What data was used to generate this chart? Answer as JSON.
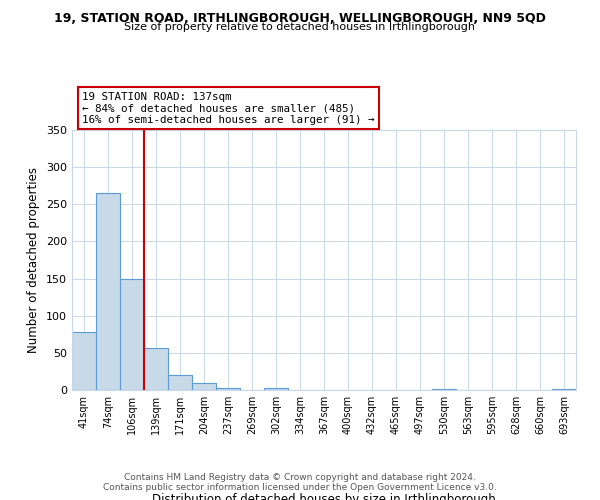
{
  "title_line1": "19, STATION ROAD, IRTHLINGBOROUGH, WELLINGBOROUGH, NN9 5QD",
  "title_line2": "Size of property relative to detached houses in Irthlingborough",
  "xlabel": "Distribution of detached houses by size in Irthlingborough",
  "ylabel": "Number of detached properties",
  "bar_labels": [
    "41sqm",
    "74sqm",
    "106sqm",
    "139sqm",
    "171sqm",
    "204sqm",
    "237sqm",
    "269sqm",
    "302sqm",
    "334sqm",
    "367sqm",
    "400sqm",
    "432sqm",
    "465sqm",
    "497sqm",
    "530sqm",
    "563sqm",
    "595sqm",
    "628sqm",
    "660sqm",
    "693sqm"
  ],
  "bar_values": [
    78,
    265,
    149,
    57,
    20,
    10,
    3,
    0,
    3,
    0,
    0,
    0,
    0,
    0,
    0,
    2,
    0,
    0,
    0,
    0,
    2
  ],
  "bar_color": "#c8d9e8",
  "bar_edge_color": "#5b9bd5",
  "vline_index": 3,
  "vline_color": "#cc0000",
  "annotation_title": "19 STATION ROAD: 137sqm",
  "annotation_line2": "← 84% of detached houses are smaller (485)",
  "annotation_line3": "16% of semi-detached houses are larger (91) →",
  "annotation_box_color": "#cc0000",
  "annotation_fill": "#ffffff",
  "ylim": [
    0,
    350
  ],
  "yticks": [
    0,
    50,
    100,
    150,
    200,
    250,
    300,
    350
  ],
  "footer_line1": "Contains HM Land Registry data © Crown copyright and database right 2024.",
  "footer_line2": "Contains public sector information licensed under the Open Government Licence v3.0.",
  "background_color": "#ffffff",
  "grid_color": "#c8d8e8"
}
